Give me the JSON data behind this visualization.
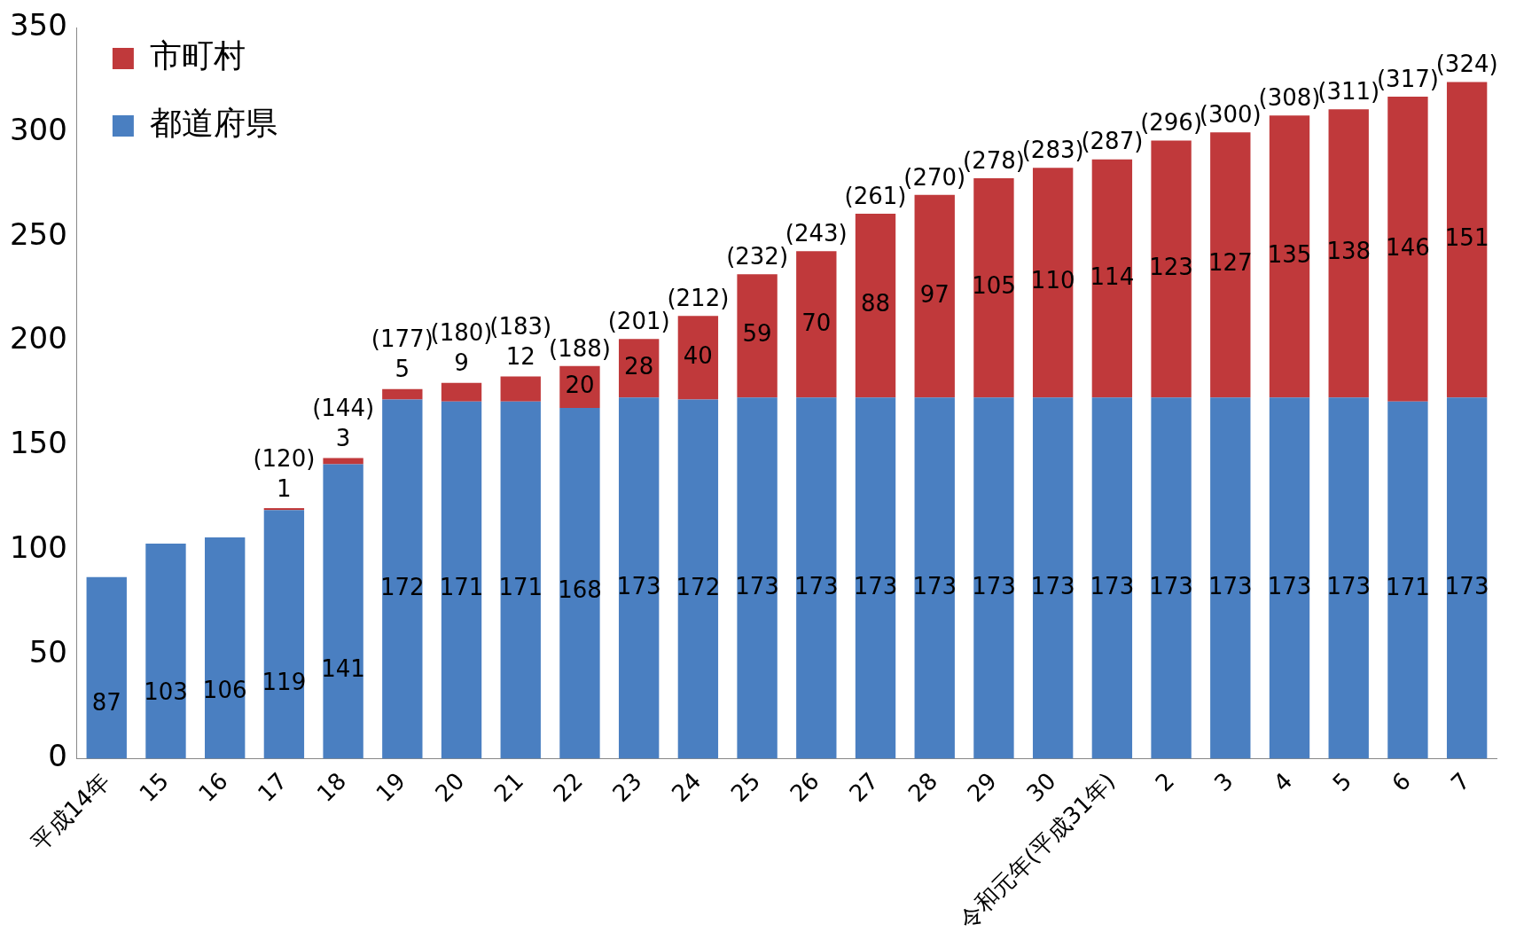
{
  "chart_data": {
    "type": "bar",
    "stacked": true,
    "categories": [
      "平成14年",
      "15",
      "16",
      "17",
      "18",
      "19",
      "20",
      "21",
      "22",
      "23",
      "24",
      "25",
      "26",
      "27",
      "28",
      "29",
      "30",
      "令和元年(平成31年)",
      "2",
      "3",
      "4",
      "5",
      "6",
      "7"
    ],
    "series": [
      {
        "name": "都道府県",
        "color": "#4a7fc1",
        "values": [
          87,
          103,
          106,
          119,
          141,
          172,
          171,
          171,
          168,
          173,
          172,
          173,
          173,
          173,
          173,
          173,
          173,
          173,
          173,
          173,
          173,
          173,
          171,
          173
        ]
      },
      {
        "name": "市町村",
        "color": "#c0393b",
        "values": [
          null,
          null,
          null,
          1,
          3,
          5,
          9,
          12,
          20,
          28,
          40,
          59,
          70,
          88,
          97,
          105,
          110,
          114,
          123,
          127,
          135,
          138,
          146,
          151
        ]
      }
    ],
    "totals": [
      null,
      null,
      null,
      "(120)",
      "(144)",
      "(177)",
      "(180)",
      "(183)",
      "(188)",
      "(201)",
      "(212)",
      "(232)",
      "(243)",
      "(261)",
      "(270)",
      "(278)",
      "(283)",
      "(287)",
      "(296)",
      "(300)",
      "(308)",
      "(311)",
      "(317)",
      "(324)"
    ],
    "data_labels": true,
    "ylim": [
      0,
      350
    ],
    "yticks": [
      0,
      50,
      100,
      150,
      200,
      250,
      300,
      350
    ],
    "grid": false,
    "legend": "top left"
  }
}
